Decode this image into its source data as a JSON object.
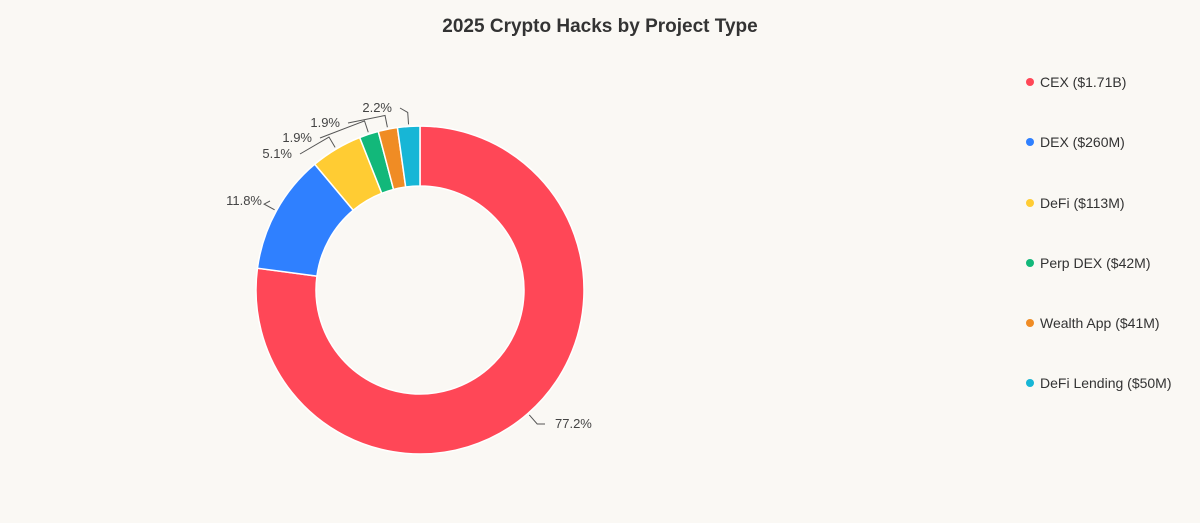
{
  "chart_data": {
    "type": "pie",
    "variant": "donut",
    "title": "2025 Crypto Hacks by Project Type",
    "legend_position": "right",
    "slices": [
      {
        "name": "CEX",
        "legend_label": "CEX ($1.71B)",
        "percent": 77.2,
        "pct_label": "77.2%",
        "color": "#ff4757"
      },
      {
        "name": "DEX",
        "legend_label": "DEX ($260M)",
        "percent": 11.8,
        "pct_label": "11.8%",
        "color": "#2f80ff"
      },
      {
        "name": "DeFi",
        "legend_label": "DeFi ($113M)",
        "percent": 5.1,
        "pct_label": "5.1%",
        "color": "#ffcc33"
      },
      {
        "name": "Perp DEX",
        "legend_label": "Perp DEX ($42M)",
        "percent": 1.9,
        "pct_label": "1.9%",
        "color": "#12b87a"
      },
      {
        "name": "Wealth App",
        "legend_label": "Wealth App ($41M)",
        "percent": 1.9,
        "pct_label": "1.9%",
        "color": "#f08c24"
      },
      {
        "name": "DeFi Lending",
        "legend_label": "DeFi Lending ($50M)",
        "percent": 2.2,
        "pct_label": "2.2%",
        "color": "#17b6d6"
      }
    ]
  }
}
